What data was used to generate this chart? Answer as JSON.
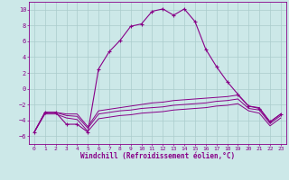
{
  "xlabel": "Windchill (Refroidissement éolien,°C)",
  "background_color": "#cce8e8",
  "grid_color": "#aacccc",
  "line_color": "#880088",
  "xlim": [
    -0.5,
    23.5
  ],
  "ylim": [
    -7,
    11
  ],
  "yticks": [
    -6,
    -4,
    -2,
    0,
    2,
    4,
    6,
    8,
    10
  ],
  "xticks": [
    0,
    1,
    2,
    3,
    4,
    5,
    6,
    7,
    8,
    9,
    10,
    11,
    12,
    13,
    14,
    15,
    16,
    17,
    18,
    19,
    20,
    21,
    22,
    23
  ],
  "series1_x": [
    0,
    1,
    2,
    3,
    4,
    5,
    6,
    7,
    8,
    9,
    10,
    11,
    12,
    13,
    14,
    15,
    16,
    17,
    18,
    19,
    20,
    21,
    22,
    23
  ],
  "series1_y": [
    -5.5,
    -3.0,
    -3.0,
    -4.5,
    -4.5,
    -5.5,
    2.5,
    4.7,
    6.1,
    7.9,
    8.2,
    9.8,
    10.1,
    9.3,
    10.1,
    8.5,
    5.0,
    2.8,
    0.9,
    -0.7,
    -2.2,
    -2.5,
    -4.2,
    -3.2
  ],
  "series2_x": [
    0,
    1,
    2,
    3,
    4,
    5,
    6,
    7,
    8,
    9,
    10,
    11,
    12,
    13,
    14,
    15,
    16,
    17,
    18,
    19,
    20,
    21,
    22,
    23
  ],
  "series2_y": [
    -5.5,
    -3.0,
    -3.0,
    -3.2,
    -3.2,
    -4.8,
    -2.8,
    -2.6,
    -2.4,
    -2.2,
    -2.0,
    -1.8,
    -1.7,
    -1.5,
    -1.4,
    -1.3,
    -1.2,
    -1.1,
    -1.0,
    -0.8,
    -2.2,
    -2.4,
    -4.2,
    -3.2
  ],
  "series3_x": [
    0,
    1,
    2,
    3,
    4,
    5,
    6,
    7,
    8,
    9,
    10,
    11,
    12,
    13,
    14,
    15,
    16,
    17,
    18,
    19,
    20,
    21,
    22,
    23
  ],
  "series3_y": [
    -5.5,
    -3.0,
    -3.0,
    -3.4,
    -3.5,
    -5.0,
    -3.2,
    -3.0,
    -2.8,
    -2.7,
    -2.5,
    -2.4,
    -2.3,
    -2.1,
    -2.0,
    -1.9,
    -1.8,
    -1.6,
    -1.5,
    -1.3,
    -2.5,
    -2.7,
    -4.4,
    -3.4
  ],
  "series4_x": [
    0,
    1,
    2,
    3,
    4,
    5,
    6,
    7,
    8,
    9,
    10,
    11,
    12,
    13,
    14,
    15,
    16,
    17,
    18,
    19,
    20,
    21,
    22,
    23
  ],
  "series4_y": [
    -5.5,
    -3.2,
    -3.2,
    -3.7,
    -3.9,
    -5.4,
    -3.8,
    -3.6,
    -3.4,
    -3.3,
    -3.1,
    -3.0,
    -2.9,
    -2.7,
    -2.6,
    -2.5,
    -2.4,
    -2.2,
    -2.1,
    -1.9,
    -2.8,
    -3.1,
    -4.7,
    -3.7
  ]
}
